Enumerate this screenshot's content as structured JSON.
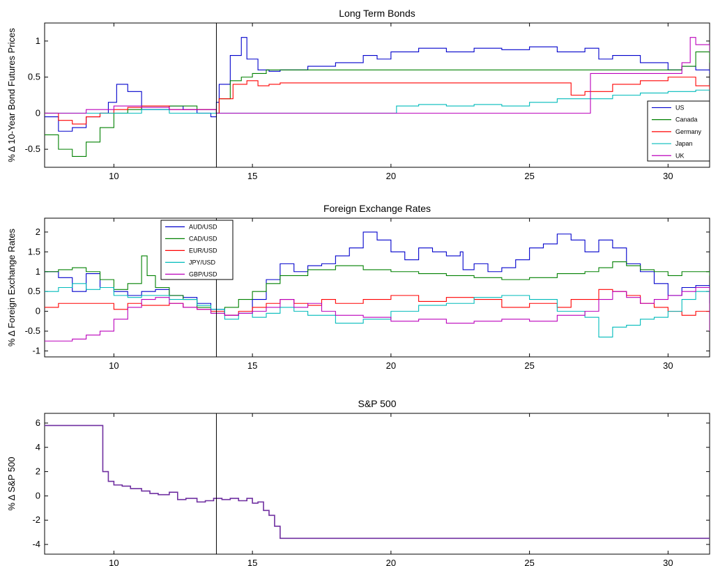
{
  "chart_data": [
    {
      "type": "line",
      "title": "Long Term Bonds",
      "ylabel": "% Δ 10-Year Bond Futures Prices",
      "xlabel": "",
      "xlim": [
        7.5,
        31.5
      ],
      "ylim": [
        -0.75,
        1.25
      ],
      "xticks": [
        10,
        15,
        20,
        25,
        30
      ],
      "yticks": [
        -0.5,
        0,
        0.5,
        1
      ],
      "ytick_labels": [
        "-0.5",
        "0",
        "0.5",
        "1"
      ],
      "vline": 13.7,
      "legend_position": "bottom-right",
      "series": [
        {
          "name": "US",
          "color": "#0000cc",
          "x": [
            7.5,
            8,
            8.5,
            9,
            9.5,
            9.8,
            10.1,
            10.5,
            11,
            11.5,
            12,
            12.5,
            13,
            13.5,
            13.7,
            13.8,
            14.2,
            14.6,
            14.8,
            15.2,
            15.6,
            16,
            17,
            18,
            19,
            19.5,
            20,
            21,
            22,
            23,
            24,
            25,
            26,
            27,
            27.5,
            28,
            29,
            30,
            30.5,
            31,
            31.5
          ],
          "y": [
            -0.05,
            -0.25,
            -0.2,
            -0.05,
            0,
            0.15,
            0.4,
            0.3,
            0.05,
            0.05,
            0.1,
            0.05,
            0,
            -0.05,
            0.15,
            0.4,
            0.8,
            1.05,
            0.75,
            0.6,
            0.58,
            0.6,
            0.65,
            0.7,
            0.8,
            0.75,
            0.85,
            0.9,
            0.85,
            0.9,
            0.88,
            0.92,
            0.85,
            0.9,
            0.75,
            0.8,
            0.7,
            0.6,
            0.65,
            0.6,
            0.55
          ]
        },
        {
          "name": "Canada",
          "color": "#008000",
          "x": [
            7.5,
            8,
            8.5,
            9,
            9.5,
            10,
            10.5,
            11,
            12,
            13,
            13.7,
            13.8,
            14.2,
            14.6,
            15,
            15.5,
            16,
            20,
            25,
            27,
            27.5,
            28,
            29,
            30,
            30.5,
            31,
            31.5
          ],
          "y": [
            -0.3,
            -0.5,
            -0.6,
            -0.4,
            -0.2,
            0,
            0.05,
            0.1,
            0.1,
            0.05,
            0,
            0.2,
            0.45,
            0.5,
            0.55,
            0.6,
            0.6,
            0.6,
            0.6,
            0.6,
            0.6,
            0.6,
            0.6,
            0.6,
            0.65,
            0.85,
            0.7
          ]
        },
        {
          "name": "Germany",
          "color": "#ff0000",
          "x": [
            7.5,
            8,
            8.5,
            9,
            9.5,
            10,
            10.5,
            11,
            12,
            13,
            13.7,
            13.8,
            14.3,
            14.8,
            15.2,
            15.6,
            16,
            20,
            26,
            26.5,
            27,
            27.5,
            28,
            29,
            30,
            31,
            31.5
          ],
          "y": [
            0,
            -0.1,
            -0.15,
            -0.05,
            0,
            0.05,
            0.08,
            0.1,
            0.05,
            0.05,
            0,
            0.2,
            0.4,
            0.45,
            0.38,
            0.4,
            0.42,
            0.42,
            0.42,
            0.25,
            0.3,
            0.3,
            0.4,
            0.45,
            0.5,
            0.38,
            0.33
          ]
        },
        {
          "name": "Japan",
          "color": "#00bbbb",
          "x": [
            7.5,
            8,
            9,
            10,
            11,
            12,
            13,
            13.7,
            15,
            20,
            20.2,
            21,
            22,
            23,
            24,
            25,
            26,
            27,
            27.3,
            28,
            29,
            30,
            31,
            31.5
          ],
          "y": [
            0,
            0,
            0,
            0,
            0.05,
            0,
            0,
            0,
            0,
            0,
            0.1,
            0.12,
            0.1,
            0.12,
            0.1,
            0.15,
            0.2,
            0.2,
            0.2,
            0.25,
            0.28,
            0.3,
            0.32,
            0.32
          ]
        },
        {
          "name": "UK",
          "color": "#bb00bb",
          "x": [
            7.5,
            8,
            9,
            10,
            11,
            12,
            13,
            13.7,
            15,
            20,
            25,
            27.1,
            27.2,
            28,
            29,
            30,
            30.5,
            30.8,
            31,
            31.5
          ],
          "y": [
            0,
            0,
            0.05,
            0.1,
            0.08,
            0.05,
            0.05,
            0,
            0,
            0,
            0,
            0,
            0.55,
            0.55,
            0.55,
            0.55,
            0.7,
            1.05,
            0.95,
            0.85
          ]
        }
      ]
    },
    {
      "type": "line",
      "title": "Foreign Exchange Rates",
      "ylabel": "% Δ Foreign Exchange Rates",
      "xlabel": "",
      "xlim": [
        7.5,
        31.5
      ],
      "ylim": [
        -1.15,
        2.35
      ],
      "xticks": [
        10,
        15,
        20,
        25,
        30
      ],
      "yticks": [
        -1,
        -0.5,
        0,
        0.5,
        1,
        1.5,
        2
      ],
      "ytick_labels": [
        "-1",
        "-0.5",
        "0",
        "0.5",
        "1",
        "1.5",
        "2"
      ],
      "vline": 13.7,
      "legend_position": "top-left",
      "series": [
        {
          "name": "AUD/USD",
          "color": "#0000cc",
          "x": [
            7.5,
            8,
            8.5,
            9,
            9.5,
            10,
            10.5,
            11,
            11.5,
            12,
            12.5,
            13,
            13.5,
            14,
            14.5,
            15,
            15.5,
            16,
            16.5,
            17,
            17.5,
            18,
            18.5,
            19,
            19.5,
            20,
            20.5,
            21,
            21.5,
            22,
            22.5,
            22.6,
            23,
            23.5,
            24,
            24.5,
            25,
            25.5,
            26,
            26.5,
            27,
            27.5,
            28,
            28.5,
            29,
            29.5,
            30,
            30.5,
            31,
            31.5
          ],
          "y": [
            1.0,
            0.85,
            0.5,
            0.95,
            0.6,
            0.5,
            0.4,
            0.5,
            0.55,
            0.4,
            0.35,
            0.2,
            0.05,
            -0.1,
            -0.05,
            0.3,
            0.8,
            1.2,
            1.0,
            1.15,
            1.2,
            1.4,
            1.6,
            2.0,
            1.8,
            1.5,
            1.3,
            1.6,
            1.5,
            1.4,
            1.5,
            1.05,
            1.2,
            1.0,
            1.1,
            1.3,
            1.6,
            1.7,
            1.95,
            1.8,
            1.5,
            1.8,
            1.6,
            1.2,
            1.0,
            0.7,
            0.4,
            0.6,
            0.65,
            0.2
          ]
        },
        {
          "name": "CAD/USD",
          "color": "#008000",
          "x": [
            7.5,
            8,
            8.5,
            9,
            9.5,
            10,
            10.5,
            11,
            11.2,
            11.5,
            12,
            12.5,
            13,
            13.5,
            14,
            14.5,
            15,
            15.5,
            16,
            17,
            18,
            19,
            20,
            21,
            22,
            23,
            24,
            25,
            26,
            27,
            27.5,
            28,
            28.5,
            29,
            29.5,
            30,
            30.5,
            31,
            31.5
          ],
          "y": [
            1.0,
            1.05,
            1.1,
            1.0,
            0.8,
            0.55,
            0.7,
            1.4,
            0.9,
            0.6,
            0.4,
            0.3,
            0.1,
            -0.05,
            0.1,
            0.3,
            0.5,
            0.7,
            0.9,
            1.05,
            1.15,
            1.05,
            1.0,
            0.95,
            0.9,
            0.85,
            0.8,
            0.85,
            0.95,
            1.0,
            1.1,
            1.25,
            1.15,
            1.05,
            1.0,
            0.9,
            1.0,
            1.0,
            0.9
          ]
        },
        {
          "name": "EUR/USD",
          "color": "#ff0000",
          "x": [
            7.5,
            8,
            9,
            10,
            10.5,
            11,
            12,
            12.5,
            13,
            13.5,
            14,
            14.5,
            15,
            15.5,
            16,
            16.5,
            17,
            17.5,
            18,
            19,
            20,
            21,
            22,
            23,
            24,
            25,
            26,
            26.5,
            27,
            27.5,
            28,
            28.5,
            29,
            29.5,
            30,
            30.5,
            31,
            31.5
          ],
          "y": [
            0.1,
            0.2,
            0.2,
            0.05,
            0.2,
            0.15,
            0.2,
            0.1,
            0.05,
            0.0,
            -0.1,
            0.0,
            0.1,
            0.2,
            0.3,
            0.2,
            0.15,
            0.3,
            0.2,
            0.3,
            0.4,
            0.25,
            0.35,
            0.3,
            0.1,
            0.2,
            0.1,
            0.3,
            0.3,
            0.55,
            0.5,
            0.4,
            0.2,
            0.1,
            0.0,
            -0.1,
            0.0,
            -0.05
          ]
        },
        {
          "name": "JPY/USD",
          "color": "#00bbbb",
          "x": [
            7.5,
            8,
            8.5,
            9,
            9.5,
            10,
            10.5,
            11,
            12,
            13,
            13.5,
            14,
            14.5,
            15,
            15.5,
            16,
            16.5,
            17,
            18,
            19,
            20,
            21,
            22,
            23,
            24,
            25,
            26,
            27,
            27.5,
            28,
            28.5,
            29,
            29.5,
            30,
            30.5,
            31,
            31.5
          ],
          "y": [
            0.5,
            0.6,
            0.7,
            0.55,
            0.6,
            0.4,
            0.35,
            0.4,
            0.3,
            0.15,
            0.05,
            -0.2,
            -0.05,
            -0.15,
            -0.05,
            0.1,
            0.0,
            -0.1,
            -0.3,
            -0.2,
            0.0,
            0.15,
            0.2,
            0.35,
            0.4,
            0.3,
            0.0,
            -0.15,
            -0.65,
            -0.4,
            -0.35,
            -0.2,
            -0.15,
            0.0,
            0.3,
            0.5,
            0.2
          ]
        },
        {
          "name": "GBP/USD",
          "color": "#bb00bb",
          "x": [
            7.5,
            8,
            8.5,
            9,
            9.5,
            10,
            10.5,
            11,
            11.5,
            12,
            12.5,
            13,
            13.5,
            14,
            14.5,
            15,
            15.5,
            16,
            16.5,
            17,
            17.5,
            18,
            19,
            20,
            21,
            22,
            23,
            24,
            25,
            26,
            27,
            27.5,
            28,
            28.5,
            29,
            29.5,
            30,
            30.5,
            31,
            31.5
          ],
          "y": [
            -0.75,
            -0.75,
            -0.7,
            -0.6,
            -0.5,
            -0.2,
            0.1,
            0.3,
            0.35,
            0.2,
            0.1,
            0.05,
            -0.05,
            -0.1,
            -0.05,
            0.0,
            0.1,
            0.3,
            0.1,
            0.2,
            0.0,
            -0.1,
            -0.15,
            -0.25,
            -0.2,
            -0.3,
            -0.25,
            -0.2,
            -0.25,
            -0.1,
            0.0,
            0.3,
            0.5,
            0.35,
            0.2,
            0.3,
            0.4,
            0.5,
            0.6,
            -0.5
          ]
        }
      ]
    },
    {
      "type": "line",
      "title": "S&P 500",
      "ylabel": "% Δ S&P 500",
      "xlabel": "",
      "xlim": [
        7.5,
        31.5
      ],
      "ylim": [
        -4.8,
        6.8
      ],
      "xticks": [
        10,
        15,
        20,
        25,
        30
      ],
      "yticks": [
        -4,
        -2,
        0,
        2,
        4,
        6
      ],
      "ytick_labels": [
        "-4",
        "-2",
        "0",
        "2",
        "4",
        "6"
      ],
      "vline": 13.7,
      "series": [
        {
          "color": "#6f2fa0",
          "x": [
            7.5,
            9.5,
            9.6,
            9.8,
            10,
            10.3,
            10.6,
            11,
            11.3,
            11.6,
            12,
            12.3,
            12.6,
            13,
            13.3,
            13.6,
            13.9,
            14.2,
            14.5,
            14.8,
            15,
            15.2,
            15.4,
            15.6,
            15.8,
            16,
            20,
            25,
            30,
            31.5
          ],
          "y": [
            5.8,
            5.8,
            2.0,
            1.2,
            0.9,
            0.8,
            0.6,
            0.4,
            0.2,
            0.1,
            0.3,
            -0.3,
            -0.2,
            -0.5,
            -0.4,
            -0.2,
            -0.3,
            -0.2,
            -0.4,
            -0.2,
            -0.6,
            -0.5,
            -1.2,
            -1.6,
            -2.5,
            -3.5,
            -3.5,
            -3.5,
            -3.5,
            -3.5
          ]
        }
      ]
    }
  ]
}
